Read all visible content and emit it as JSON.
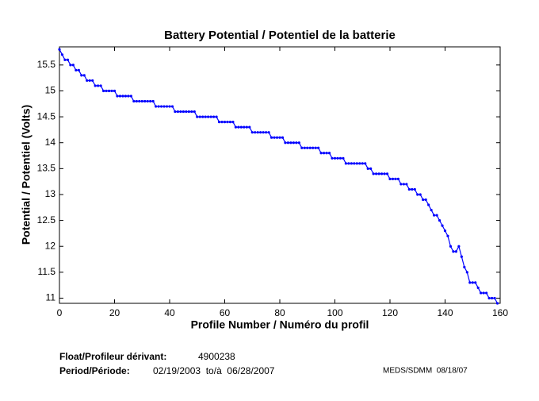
{
  "chart_data": {
    "type": "line",
    "title": "Battery Potential / Potentiel de la batterie",
    "xlabel": "Profile Number / Numéro du profil",
    "ylabel": "Potential / Potentiel (Volts)",
    "x": [
      0,
      1,
      2,
      3,
      4,
      5,
      6,
      7,
      8,
      9,
      10,
      11,
      12,
      13,
      14,
      15,
      16,
      17,
      18,
      19,
      20,
      21,
      22,
      23,
      24,
      25,
      26,
      27,
      28,
      29,
      30,
      31,
      32,
      33,
      34,
      35,
      36,
      37,
      38,
      39,
      40,
      41,
      42,
      43,
      44,
      45,
      46,
      47,
      48,
      49,
      50,
      51,
      52,
      53,
      54,
      55,
      56,
      57,
      58,
      59,
      60,
      61,
      62,
      63,
      64,
      65,
      66,
      67,
      68,
      69,
      70,
      71,
      72,
      73,
      74,
      75,
      76,
      77,
      78,
      79,
      80,
      81,
      82,
      83,
      84,
      85,
      86,
      87,
      88,
      89,
      90,
      91,
      92,
      93,
      94,
      95,
      96,
      97,
      98,
      99,
      100,
      101,
      102,
      103,
      104,
      105,
      106,
      107,
      108,
      109,
      110,
      111,
      112,
      113,
      114,
      115,
      116,
      117,
      118,
      119,
      120,
      121,
      122,
      123,
      124,
      125,
      126,
      127,
      128,
      129,
      130,
      131,
      132,
      133,
      134,
      135,
      136,
      137,
      138,
      139,
      140,
      141,
      142,
      143,
      144,
      145,
      146,
      147,
      148,
      149,
      150,
      151,
      152,
      153,
      154,
      155,
      156,
      157,
      158,
      159
    ],
    "series": [
      {
        "name": "Battery Potential",
        "color": "#0000ff",
        "values": [
          15.8,
          15.7,
          15.6,
          15.6,
          15.5,
          15.5,
          15.4,
          15.4,
          15.3,
          15.3,
          15.2,
          15.2,
          15.2,
          15.1,
          15.1,
          15.1,
          15.0,
          15.0,
          15.0,
          15.0,
          15.0,
          14.9,
          14.9,
          14.9,
          14.9,
          14.9,
          14.9,
          14.8,
          14.8,
          14.8,
          14.8,
          14.8,
          14.8,
          14.8,
          14.8,
          14.7,
          14.7,
          14.7,
          14.7,
          14.7,
          14.7,
          14.7,
          14.6,
          14.6,
          14.6,
          14.6,
          14.6,
          14.6,
          14.6,
          14.6,
          14.5,
          14.5,
          14.5,
          14.5,
          14.5,
          14.5,
          14.5,
          14.5,
          14.4,
          14.4,
          14.4,
          14.4,
          14.4,
          14.4,
          14.3,
          14.3,
          14.3,
          14.3,
          14.3,
          14.3,
          14.2,
          14.2,
          14.2,
          14.2,
          14.2,
          14.2,
          14.2,
          14.1,
          14.1,
          14.1,
          14.1,
          14.1,
          14.0,
          14.0,
          14.0,
          14.0,
          14.0,
          14.0,
          13.9,
          13.9,
          13.9,
          13.9,
          13.9,
          13.9,
          13.9,
          13.8,
          13.8,
          13.8,
          13.8,
          13.7,
          13.7,
          13.7,
          13.7,
          13.7,
          13.6,
          13.6,
          13.6,
          13.6,
          13.6,
          13.6,
          13.6,
          13.6,
          13.5,
          13.5,
          13.4,
          13.4,
          13.4,
          13.4,
          13.4,
          13.4,
          13.3,
          13.3,
          13.3,
          13.3,
          13.2,
          13.2,
          13.2,
          13.1,
          13.1,
          13.1,
          13.0,
          13.0,
          12.9,
          12.9,
          12.8,
          12.7,
          12.6,
          12.6,
          12.5,
          12.4,
          12.3,
          12.2,
          12.0,
          11.9,
          11.9,
          12.0,
          11.8,
          11.6,
          11.5,
          11.3,
          11.3,
          11.3,
          11.2,
          11.1,
          11.1,
          11.1,
          11.0,
          11.0,
          11.0,
          10.9
        ]
      }
    ],
    "xlim": [
      0,
      160
    ],
    "xticks": [
      0,
      20,
      40,
      60,
      80,
      100,
      120,
      140,
      160
    ],
    "ylim": [
      10.9,
      15.85
    ],
    "yticks": [
      11,
      11.5,
      12,
      12.5,
      13,
      13.5,
      14,
      14.5,
      15,
      15.5
    ],
    "grid": false,
    "float_label": "Float/Profileur dérivant:",
    "float_id": "4900238",
    "period_label": "Period/Période:",
    "period": "02/19/2003  to/à  06/28/2007",
    "credit": "MEDS/SDMM  08/18/07"
  }
}
